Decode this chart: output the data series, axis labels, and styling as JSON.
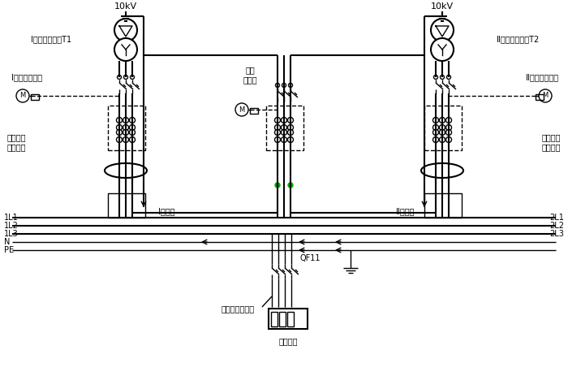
{
  "title": "",
  "bg_color": "#ffffff",
  "line_color": "#000000",
  "text_color": "#000000",
  "green_color": "#00aa00",
  "labels": {
    "10kV_left": "10kV",
    "10kV_right": "10kV",
    "transformer_left": "I段电力变压器T1",
    "transformer_right": "Ⅱ段电力变压器T2",
    "breaker_left": "I段进线断路器",
    "breaker_right": "Ⅱ段进线断路器",
    "bus_coupler": "母联\n断路器",
    "fault_left": "接地故障\n电流检测",
    "fault_right": "接地故障\n电流检测",
    "bus1": "I段母线",
    "bus2": "Ⅱ段母线",
    "1L1": "1L1",
    "1L2": "1L2",
    "1L3": "1L3",
    "N": "N",
    "PE": "PE",
    "2L1": "2L1",
    "2L2": "2L2",
    "2L3": "2L3",
    "QF11": "QF11",
    "fault_point": "单相接地故障点",
    "load": "用电设备"
  }
}
